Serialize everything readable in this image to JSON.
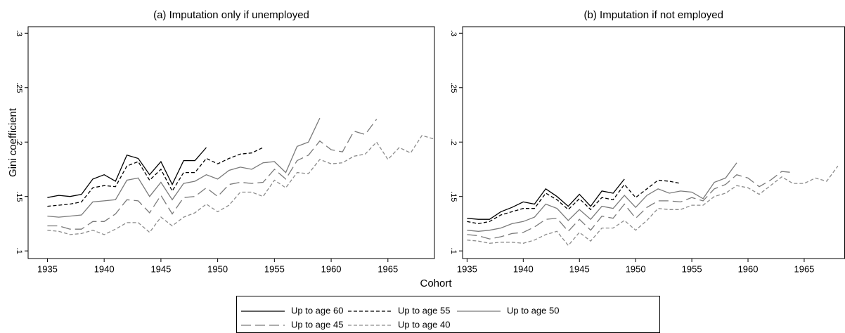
{
  "chart_data": [
    {
      "type": "line",
      "title": "(a) Imputation only if unemployed",
      "y_label": "Gini coefficient",
      "x_label": "Cohort",
      "x": [
        1935,
        1936,
        1937,
        1938,
        1939,
        1940,
        1941,
        1942,
        1943,
        1944,
        1945,
        1946,
        1947,
        1948,
        1949,
        1950,
        1951,
        1952,
        1953,
        1954,
        1955,
        1956,
        1957,
        1958,
        1959,
        1960,
        1961,
        1962,
        1963,
        1964,
        1965,
        1966,
        1967,
        1968,
        1969
      ],
      "xlim": [
        1933.3,
        1969.1
      ],
      "xticks": [
        1935,
        1940,
        1945,
        1950,
        1955,
        1960,
        1965
      ],
      "ylim": [
        0.093,
        0.306
      ],
      "yticks": [
        {
          "value": 0.1,
          "label": ".1"
        },
        {
          "value": 0.15,
          "label": ".15"
        },
        {
          "value": 0.2,
          "label": ".2"
        },
        {
          "value": 0.25,
          "label": ".25"
        },
        {
          "value": 0.3,
          "label": ".3"
        }
      ],
      "series": [
        {
          "name": "Up to age 60",
          "color": "#000000",
          "dash": "solid",
          "values": [
            0.149,
            0.151,
            0.15,
            0.152,
            0.166,
            0.17,
            0.164,
            0.188,
            0.185,
            0.17,
            0.182,
            0.161,
            0.183,
            0.183,
            0.195,
            null,
            null,
            null,
            null,
            null,
            null,
            null,
            null,
            null,
            null,
            null,
            null,
            null,
            null,
            null,
            null,
            null,
            null,
            null,
            null
          ]
        },
        {
          "name": "Up to age 55",
          "color": "#000000",
          "dash": "short",
          "values": [
            0.141,
            0.142,
            0.143,
            0.145,
            0.158,
            0.16,
            0.159,
            0.178,
            0.182,
            0.165,
            0.175,
            0.155,
            0.172,
            0.172,
            0.185,
            0.18,
            0.185,
            0.189,
            0.19,
            0.195,
            null,
            null,
            null,
            null,
            null,
            null,
            null,
            null,
            null,
            null,
            null,
            null,
            null,
            null,
            null
          ]
        },
        {
          "name": "Up to age 50",
          "color": "#7a7a7a",
          "dash": "solid",
          "values": [
            0.132,
            0.131,
            0.132,
            0.133,
            0.145,
            0.146,
            0.147,
            0.165,
            0.167,
            0.15,
            0.163,
            0.147,
            0.162,
            0.164,
            0.17,
            0.166,
            0.174,
            0.177,
            0.175,
            0.181,
            0.182,
            0.172,
            0.196,
            0.2,
            0.222,
            null,
            null,
            null,
            null,
            null,
            null,
            null,
            null,
            null,
            null
          ]
        },
        {
          "name": "Up to age 45",
          "color": "#7a7a7a",
          "dash": "long",
          "values": [
            0.123,
            0.123,
            0.12,
            0.12,
            0.127,
            0.127,
            0.134,
            0.147,
            0.146,
            0.135,
            0.151,
            0.134,
            0.149,
            0.15,
            0.158,
            0.15,
            0.161,
            0.163,
            0.162,
            0.163,
            0.175,
            0.166,
            0.183,
            0.188,
            0.201,
            0.193,
            0.191,
            0.21,
            0.207,
            0.221,
            null,
            null,
            null,
            null,
            null
          ]
        },
        {
          "name": "Up to age 40",
          "color": "#8c8c8c",
          "dash": "short",
          "values": [
            0.119,
            0.118,
            0.115,
            0.116,
            0.119,
            0.115,
            0.12,
            0.126,
            0.126,
            0.117,
            0.131,
            0.123,
            0.131,
            0.135,
            0.143,
            0.136,
            0.142,
            0.154,
            0.154,
            0.15,
            0.165,
            0.158,
            0.172,
            0.171,
            0.184,
            0.18,
            0.181,
            0.187,
            0.189,
            0.2,
            0.184,
            0.195,
            0.19,
            0.206,
            0.203
          ]
        }
      ]
    },
    {
      "type": "line",
      "title": "(b) Imputation if not employed",
      "x": [
        1935,
        1936,
        1937,
        1938,
        1939,
        1940,
        1941,
        1942,
        1943,
        1944,
        1945,
        1946,
        1947,
        1948,
        1949,
        1950,
        1951,
        1952,
        1953,
        1954,
        1955,
        1956,
        1957,
        1958,
        1959,
        1960,
        1961,
        1962,
        1963,
        1964,
        1965,
        1966,
        1967,
        1968
      ],
      "xlim": [
        1934.6,
        1968.6
      ],
      "xticks": [
        1935,
        1940,
        1945,
        1950,
        1955,
        1960,
        1965
      ],
      "ylim": [
        0.093,
        0.306
      ],
      "yticks": [
        {
          "value": 0.1,
          "label": ".1"
        },
        {
          "value": 0.15,
          "label": ".15"
        },
        {
          "value": 0.2,
          "label": ".2"
        },
        {
          "value": 0.25,
          "label": ".25"
        },
        {
          "value": 0.3,
          "label": ".3"
        }
      ],
      "series": [
        {
          "name": "Up to age 60",
          "color": "#000000",
          "dash": "solid",
          "values": [
            0.13,
            0.129,
            0.129,
            0.136,
            0.14,
            0.145,
            0.143,
            0.157,
            0.15,
            0.141,
            0.152,
            0.141,
            0.155,
            0.153,
            0.166,
            null,
            null,
            null,
            null,
            null,
            null,
            null,
            null,
            null,
            null,
            null,
            null,
            null,
            null,
            null,
            null,
            null,
            null,
            null
          ]
        },
        {
          "name": "Up to age 55",
          "color": "#000000",
          "dash": "short",
          "values": [
            0.127,
            0.125,
            0.127,
            0.133,
            0.136,
            0.139,
            0.139,
            0.153,
            0.147,
            0.138,
            0.148,
            0.138,
            0.149,
            0.147,
            0.161,
            0.149,
            0.157,
            0.165,
            0.164,
            0.162,
            null,
            null,
            null,
            null,
            null,
            null,
            null,
            null,
            null,
            null,
            null,
            null,
            null,
            null
          ]
        },
        {
          "name": "Up to age 50",
          "color": "#7a7a7a",
          "dash": "solid",
          "values": [
            0.119,
            0.118,
            0.119,
            0.121,
            0.125,
            0.127,
            0.131,
            0.143,
            0.139,
            0.128,
            0.138,
            0.129,
            0.141,
            0.139,
            0.151,
            0.14,
            0.151,
            0.157,
            0.153,
            0.155,
            0.154,
            0.148,
            0.163,
            0.167,
            0.181,
            null,
            null,
            null,
            null,
            null,
            null,
            null,
            null,
            null
          ]
        },
        {
          "name": "Up to age 45",
          "color": "#7a7a7a",
          "dash": "long",
          "values": [
            0.115,
            0.114,
            0.111,
            0.113,
            0.116,
            0.117,
            0.122,
            0.129,
            0.13,
            0.118,
            0.129,
            0.119,
            0.132,
            0.13,
            0.143,
            0.13,
            0.14,
            0.146,
            0.146,
            0.145,
            0.149,
            0.146,
            0.157,
            0.161,
            0.17,
            0.167,
            0.159,
            0.165,
            0.173,
            0.172,
            null,
            null,
            null,
            null
          ]
        },
        {
          "name": "Up to age 40",
          "color": "#8c8c8c",
          "dash": "short",
          "values": [
            0.11,
            0.109,
            0.107,
            0.108,
            0.108,
            0.107,
            0.11,
            0.115,
            0.118,
            0.105,
            0.117,
            0.109,
            0.121,
            0.121,
            0.128,
            0.119,
            0.128,
            0.139,
            0.138,
            0.138,
            0.142,
            0.142,
            0.15,
            0.153,
            0.16,
            0.158,
            0.152,
            0.16,
            0.168,
            0.162,
            0.162,
            0.167,
            0.164,
            0.178
          ]
        }
      ]
    }
  ]
}
